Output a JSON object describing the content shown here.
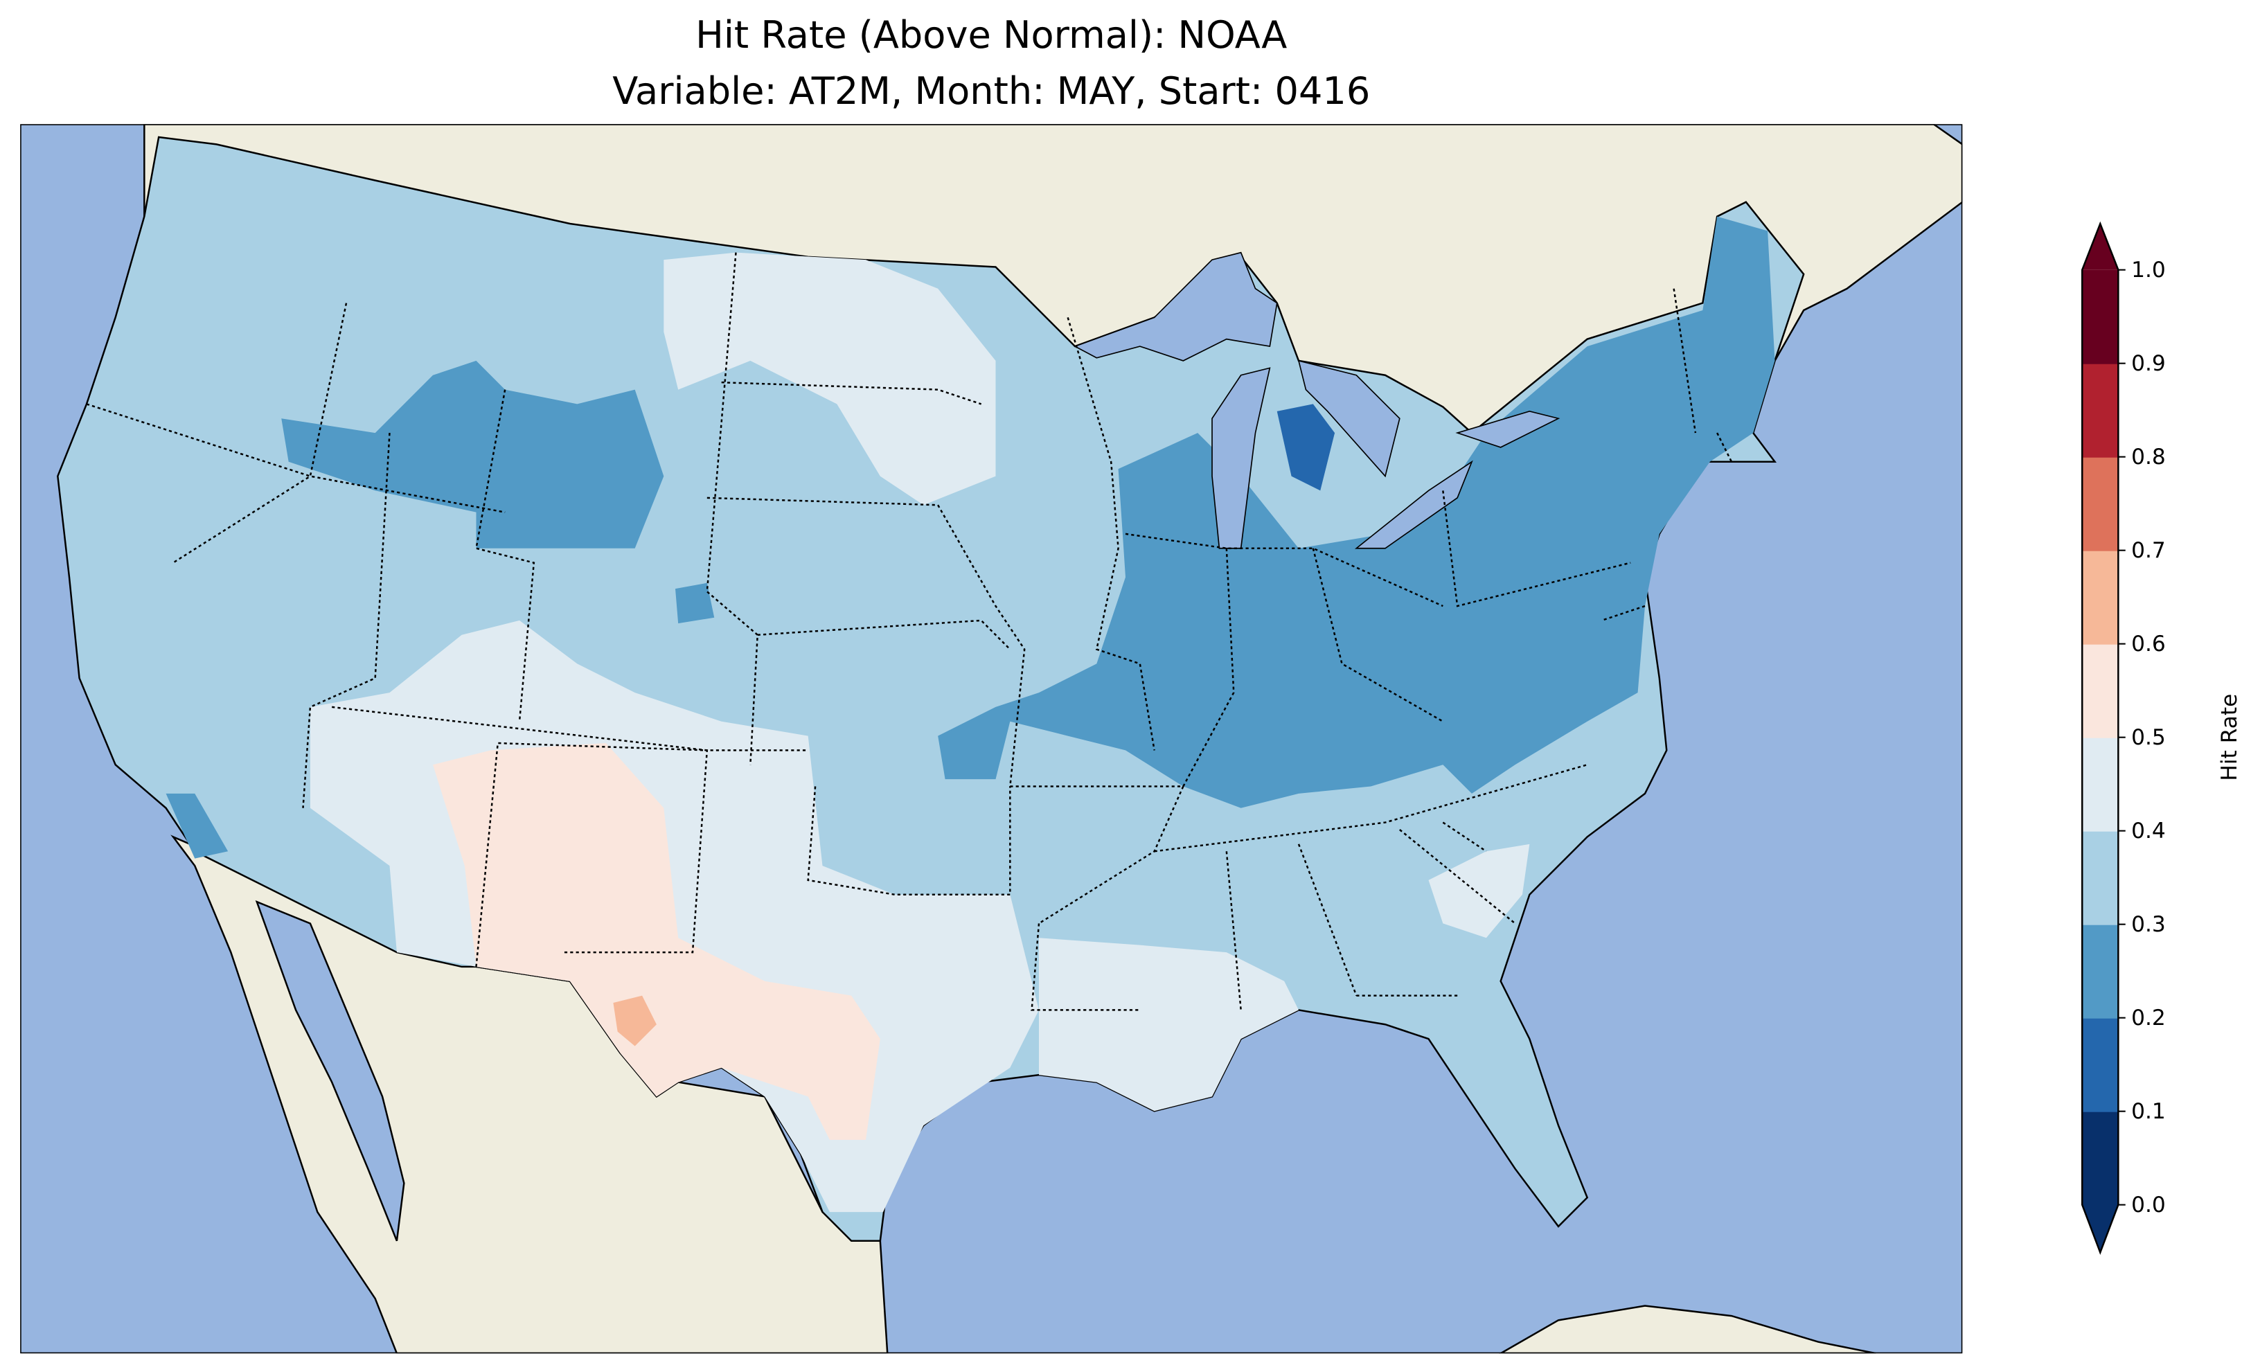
{
  "title": {
    "line1": "Hit Rate (Above Normal): NOAA",
    "line2": "Variable: AT2M, Month: MAY, Start: 0416"
  },
  "colorbar": {
    "label": "Hit Rate",
    "ticks": [
      "0.0",
      "0.1",
      "0.2",
      "0.3",
      "0.4",
      "0.5",
      "0.6",
      "0.7",
      "0.8",
      "0.9",
      "1.0"
    ],
    "colors": [
      "#08306b",
      "#2467ad",
      "#529ac6",
      "#a9d0e4",
      "#e0ebf2",
      "#fae6dd",
      "#f6b898",
      "#de725b",
      "#b1212f",
      "#67001f"
    ],
    "extend": "both"
  },
  "map": {
    "ocean_color": "#97b5e0",
    "land_color": "#efedde",
    "region": "Contiguous United States",
    "summary_by_region": {
      "Northeast_Midwest": "0.2-0.3",
      "Central_Michigan": "0.1-0.2",
      "West_Great_Plains_Southeast": "0.3-0.4",
      "Southwest_Texas_Dakotas": "0.4-0.5",
      "New_Mexico_West_Texas": "0.5-0.6",
      "West_Texas_spot": "0.6-0.7"
    }
  }
}
